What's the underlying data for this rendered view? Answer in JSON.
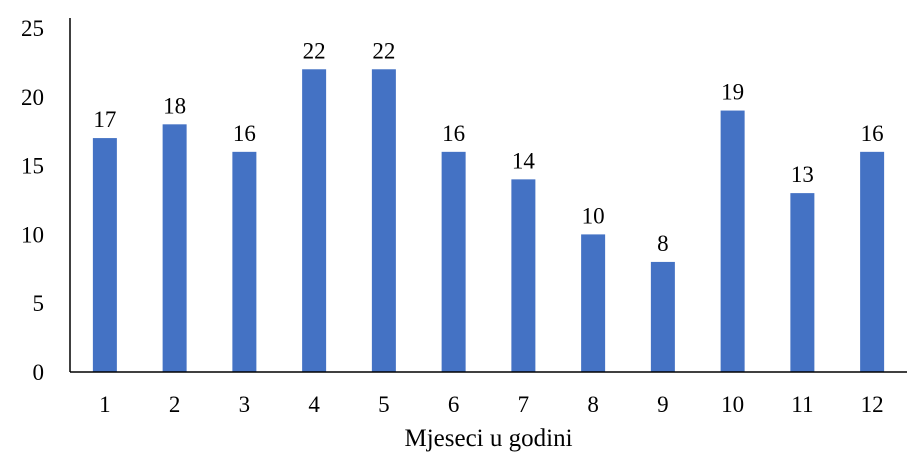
{
  "chart_data": {
    "type": "bar",
    "categories": [
      "1",
      "2",
      "3",
      "4",
      "5",
      "6",
      "7",
      "8",
      "9",
      "10",
      "11",
      "12"
    ],
    "values": [
      17,
      18,
      16,
      22,
      22,
      16,
      14,
      10,
      8,
      19,
      13,
      16
    ],
    "title": "",
    "xlabel": "Mjeseci u godini",
    "ylabel": "",
    "ylim": [
      0,
      25
    ],
    "yticks": [
      0,
      5,
      10,
      15,
      20,
      25
    ],
    "grid": false,
    "legend": "none",
    "data_labels": true,
    "bar_color": "#4472C4"
  }
}
